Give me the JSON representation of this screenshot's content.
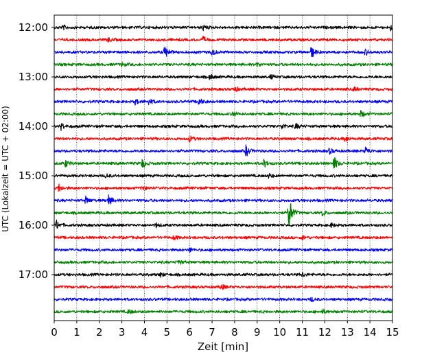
{
  "chart_data": {
    "type": "line",
    "title": "",
    "xlabel": "Zeit  [min]",
    "ylabel": "UTC (Lokalzeit = UTC + 02:00)",
    "xlim": [
      0,
      15
    ],
    "x_ticks": [
      0,
      1,
      2,
      3,
      4,
      5,
      6,
      7,
      8,
      9,
      10,
      11,
      12,
      13,
      14,
      15
    ],
    "x_grid": true,
    "y_tick_labels": [
      "12:00",
      "13:00",
      "14:00",
      "15:00",
      "16:00",
      "17:00"
    ],
    "trace_colors": [
      "#000000",
      "#ff0000",
      "#0000ff",
      "#008000"
    ],
    "traces": [
      {
        "start": "12:00",
        "color": "black",
        "events": [
          [
            0.4,
            3
          ],
          [
            6.6,
            4
          ],
          [
            14.9,
            4
          ]
        ]
      },
      {
        "start": "12:15",
        "color": "red",
        "events": [
          [
            2.4,
            3
          ],
          [
            6.6,
            4
          ]
        ]
      },
      {
        "start": "12:30",
        "color": "blue",
        "events": [
          [
            4.9,
            10
          ],
          [
            7.0,
            5
          ],
          [
            11.4,
            9
          ],
          [
            13.8,
            4
          ]
        ]
      },
      {
        "start": "12:45",
        "color": "green",
        "events": [
          [
            3.0,
            3
          ],
          [
            9.0,
            3
          ]
        ]
      },
      {
        "start": "13:00",
        "color": "black",
        "events": [
          [
            6.9,
            4
          ],
          [
            9.6,
            3
          ]
        ]
      },
      {
        "start": "13:15",
        "color": "red",
        "events": [
          [
            8.0,
            4
          ],
          [
            13.3,
            3
          ]
        ]
      },
      {
        "start": "13:30",
        "color": "blue",
        "events": [
          [
            3.6,
            4
          ],
          [
            4.2,
            5
          ],
          [
            6.4,
            6
          ]
        ]
      },
      {
        "start": "13:45",
        "color": "green",
        "events": [
          [
            7.9,
            4
          ],
          [
            13.6,
            5
          ]
        ]
      },
      {
        "start": "14:00",
        "color": "black",
        "events": [
          [
            0.3,
            5
          ],
          [
            10.1,
            4
          ],
          [
            10.7,
            4
          ]
        ]
      },
      {
        "start": "14:15",
        "color": "red",
        "events": [
          [
            6.0,
            4
          ],
          [
            12.9,
            4
          ]
        ]
      },
      {
        "start": "14:30",
        "color": "blue",
        "events": [
          [
            8.5,
            8
          ],
          [
            12.2,
            4
          ],
          [
            13.8,
            6
          ]
        ]
      },
      {
        "start": "14:45",
        "color": "green",
        "events": [
          [
            0.5,
            5
          ],
          [
            3.9,
            7
          ],
          [
            9.3,
            6
          ],
          [
            12.4,
            11
          ]
        ]
      },
      {
        "start": "15:00",
        "color": "black",
        "events": [
          [
            2.3,
            3
          ],
          [
            9.5,
            3
          ]
        ]
      },
      {
        "start": "15:15",
        "color": "red",
        "events": [
          [
            0.2,
            6
          ],
          [
            3.9,
            4
          ]
        ]
      },
      {
        "start": "15:30",
        "color": "blue",
        "events": [
          [
            1.4,
            5
          ],
          [
            2.4,
            8
          ]
        ]
      },
      {
        "start": "15:45",
        "color": "green",
        "events": [
          [
            10.4,
            26
          ],
          [
            11.9,
            4
          ]
        ]
      },
      {
        "start": "16:00",
        "color": "black",
        "events": [
          [
            0.1,
            7
          ],
          [
            4.5,
            3
          ],
          [
            12.3,
            3
          ]
        ]
      },
      {
        "start": "16:15",
        "color": "red",
        "events": [
          [
            5.3,
            3
          ],
          [
            11.0,
            3
          ]
        ]
      },
      {
        "start": "16:30",
        "color": "blue",
        "events": [
          [
            6.0,
            3
          ]
        ]
      },
      {
        "start": "16:45",
        "color": "green",
        "events": [
          [
            5.5,
            3
          ]
        ]
      },
      {
        "start": "17:00",
        "color": "black",
        "events": [
          [
            4.7,
            3
          ],
          [
            11.0,
            3
          ]
        ]
      },
      {
        "start": "17:15",
        "color": "red",
        "events": [
          [
            7.4,
            4
          ]
        ]
      },
      {
        "start": "17:30",
        "color": "blue",
        "events": [
          [
            11.4,
            3
          ]
        ]
      },
      {
        "start": "17:45",
        "color": "green",
        "events": [
          [
            3.3,
            3
          ],
          [
            11.9,
            3
          ]
        ]
      }
    ]
  }
}
